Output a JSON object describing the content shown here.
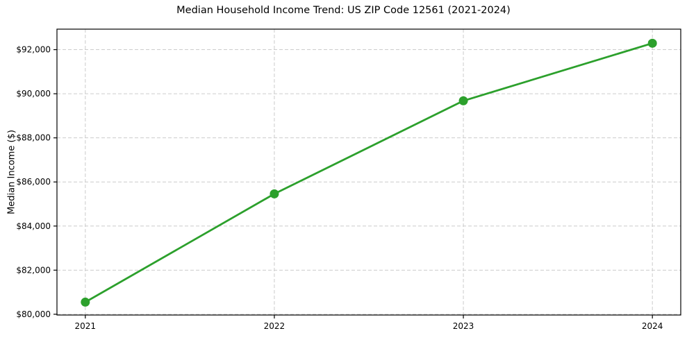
{
  "chart_data": {
    "type": "line",
    "title": "Median Household Income Trend: US ZIP Code 12561 (2021-2024)",
    "xlabel": "",
    "ylabel": "Median Income ($)",
    "x": [
      2021,
      2022,
      2023,
      2024
    ],
    "x_tick_labels": [
      "2021",
      "2022",
      "2023",
      "2024"
    ],
    "values": [
      80550,
      85460,
      89680,
      92290
    ],
    "y_ticks": [
      80000,
      82000,
      84000,
      86000,
      88000,
      90000,
      92000
    ],
    "y_tick_labels": [
      "$80,000",
      "$82,000",
      "$84,000",
      "$86,000",
      "$88,000",
      "$90,000",
      "$92,000"
    ],
    "xlim": [
      2020.85,
      2024.15
    ],
    "ylim": [
      79965,
      92930
    ],
    "grid": true,
    "grid_line_style": "dashed",
    "legend": "none",
    "line_color": "#2ca02c",
    "grid_color": "#cccccc",
    "axis_color": "#000000",
    "background_color": "#ffffff",
    "marker": "circle",
    "marker_radius": 6.5,
    "line_width": 2.8
  }
}
